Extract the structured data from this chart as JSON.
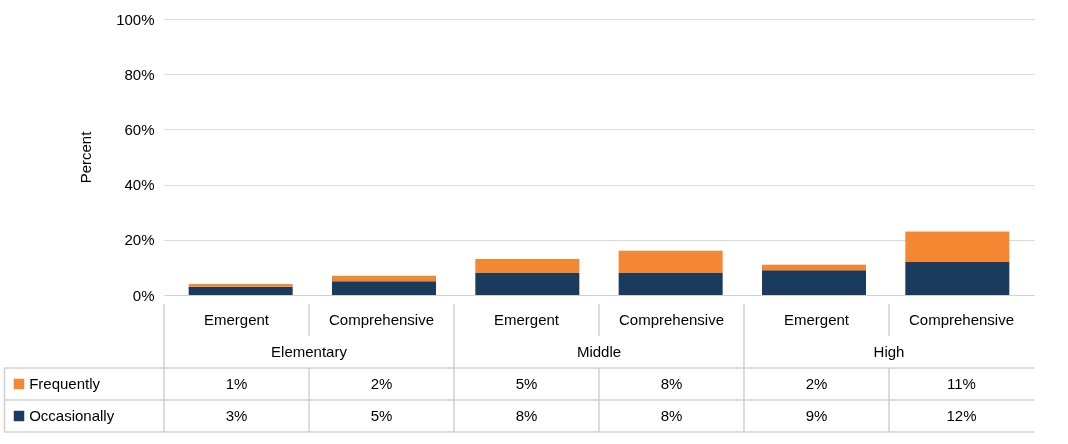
{
  "chart_data": {
    "type": "bar",
    "stacked": true,
    "ylabel": "Percent",
    "categories": [
      "Emergent",
      "Comprehensive",
      "Emergent",
      "Comprehensive",
      "Emergent",
      "Comprehensive"
    ],
    "annotations": [
      "Elementary",
      "Middle",
      "High"
    ],
    "series": [
      {
        "name": "Occasionally",
        "color": "#1a3a5e",
        "values": [
          3,
          5,
          8,
          8,
          9,
          12
        ],
        "value_labels": [
          "3%",
          "5%",
          "8%",
          "8%",
          "9%",
          "12%"
        ]
      },
      {
        "name": "Frequently",
        "color": "#f58733",
        "values": [
          1,
          2,
          5,
          8,
          2,
          11
        ],
        "value_labels": [
          "1%",
          "2%",
          "5%",
          "8%",
          "2%",
          "11%"
        ]
      }
    ],
    "ylim": [
      0,
      100
    ],
    "yticks": [
      {
        "value": 0,
        "label": "0%"
      },
      {
        "value": 20,
        "label": "20%"
      },
      {
        "value": 40,
        "label": "40%"
      },
      {
        "value": 60,
        "label": "60%"
      },
      {
        "value": 80,
        "label": "80%"
      },
      {
        "value": 100,
        "label": "100%"
      }
    ],
    "grid": "y",
    "legend": "bottom left"
  }
}
